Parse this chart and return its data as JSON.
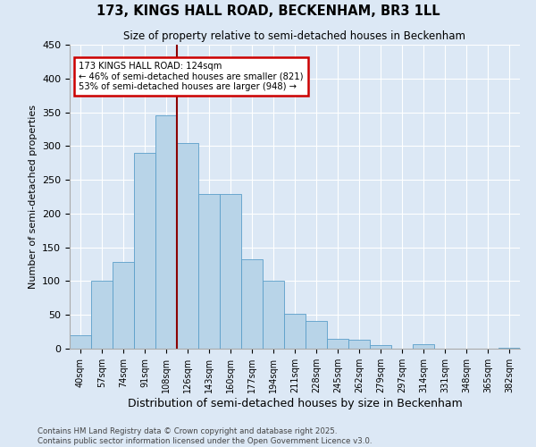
{
  "title": "173, KINGS HALL ROAD, BECKENHAM, BR3 1LL",
  "subtitle": "Size of property relative to semi-detached houses in Beckenham",
  "xlabel": "Distribution of semi-detached houses by size in Beckenham",
  "ylabel": "Number of semi-detached properties",
  "bar_labels": [
    "40sqm",
    "57sqm",
    "74sqm",
    "91sqm",
    "108sqm",
    "126sqm",
    "143sqm",
    "160sqm",
    "177sqm",
    "194sqm",
    "211sqm",
    "228sqm",
    "245sqm",
    "262sqm",
    "279sqm",
    "297sqm",
    "314sqm",
    "331sqm",
    "348sqm",
    "365sqm",
    "382sqm"
  ],
  "bar_values": [
    20,
    101,
    128,
    290,
    345,
    304,
    229,
    229,
    133,
    100,
    52,
    41,
    15,
    13,
    5,
    0,
    7,
    0,
    0,
    0,
    1
  ],
  "bar_color": "#b8d4e8",
  "bar_edge_color": "#5a9ec9",
  "property_label": "173 KINGS HALL ROAD: 124sqm",
  "pct_smaller": 46,
  "pct_smaller_n": 821,
  "pct_larger": 53,
  "pct_larger_n": 948,
  "annotation_box_color": "#cc0000",
  "vline_color": "#8b0000",
  "vline_x_index": 4.5,
  "ylim": [
    0,
    450
  ],
  "yticks": [
    0,
    50,
    100,
    150,
    200,
    250,
    300,
    350,
    400,
    450
  ],
  "bg_color": "#dce8f5",
  "footer1": "Contains HM Land Registry data © Crown copyright and database right 2025.",
  "footer2": "Contains public sector information licensed under the Open Government Licence v3.0."
}
